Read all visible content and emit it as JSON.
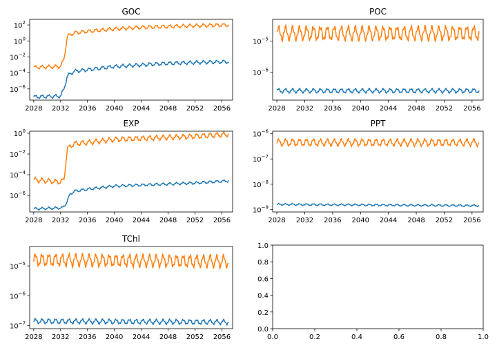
{
  "chart_data": [
    {
      "type": "line",
      "title": "GOC",
      "yscale": "log",
      "xlim": [
        2027.4,
        2057.6
      ],
      "ylim_log10": [
        -7.4,
        2.7
      ],
      "xticks": [
        2028,
        2032,
        2036,
        2040,
        2044,
        2048,
        2052,
        2056
      ],
      "xtick_labels": [
        "2028",
        "2032",
        "2036",
        "2040",
        "2044",
        "2048",
        "2052",
        "2056"
      ],
      "yticks_log10": [
        -6,
        -4,
        -2,
        0,
        2
      ],
      "ytick_labels": [
        "10",
        "10",
        "10",
        "10",
        "10"
      ],
      "ytick_exponents": [
        "−6",
        "−4",
        "−2",
        "0",
        "2"
      ],
      "series": [
        {
          "color": "#1f77b4",
          "x": [
            2028,
            2032,
            2032.5,
            2033,
            2034,
            2036,
            2040,
            2044,
            2048,
            2052,
            2057
          ],
          "log10_y": [
            -7.0,
            -6.9,
            -6.0,
            -4.4,
            -3.8,
            -3.6,
            -3.2,
            -3.0,
            -2.8,
            -2.7,
            -2.6
          ],
          "seasonal_amp": 0.18
        },
        {
          "color": "#ff7f0e",
          "x": [
            2028,
            2032,
            2032.5,
            2033,
            2034,
            2036,
            2040,
            2044,
            2048,
            2052,
            2057
          ],
          "log10_y": [
            -3.3,
            -3.2,
            -2.3,
            0.6,
            1.0,
            1.2,
            1.5,
            1.7,
            1.8,
            1.9,
            2.0
          ],
          "seasonal_amp": 0.18
        }
      ]
    },
    {
      "type": "line",
      "title": "POC",
      "yscale": "log",
      "xlim": [
        2027.4,
        2057.6
      ],
      "ylim_log10": [
        -6.9,
        -4.3
      ],
      "xticks": [
        2028,
        2032,
        2036,
        2040,
        2044,
        2048,
        2052,
        2056
      ],
      "xtick_labels": [
        "2028",
        "2032",
        "2036",
        "2040",
        "2044",
        "2048",
        "2052",
        "2056"
      ],
      "yticks_log10": [
        -6,
        -5
      ],
      "ytick_labels": [
        "10",
        "10"
      ],
      "ytick_exponents": [
        "−6",
        "−5"
      ],
      "series": [
        {
          "color": "#1f77b4",
          "x": [
            2028,
            2057
          ],
          "log10_y": [
            -6.6,
            -6.6
          ],
          "seasonal_amp": 0.06
        },
        {
          "color": "#ff7f0e",
          "x": [
            2028,
            2057
          ],
          "log10_y": [
            -4.75,
            -4.75
          ],
          "seasonal_amp": 0.2
        }
      ]
    },
    {
      "type": "line",
      "title": "EXP",
      "yscale": "log",
      "xlim": [
        2027.4,
        2057.6
      ],
      "ylim_log10": [
        -7.6,
        0.2
      ],
      "xticks": [
        2028,
        2032,
        2036,
        2040,
        2044,
        2048,
        2052,
        2056
      ],
      "xtick_labels": [
        "2028",
        "2032",
        "2036",
        "2040",
        "2044",
        "2048",
        "2052",
        "2056"
      ],
      "yticks_log10": [
        -6,
        -4,
        -2,
        0
      ],
      "ytick_labels": [
        "10",
        "10",
        "10",
        "10"
      ],
      "ytick_exponents": [
        "−6",
        "−4",
        "−2",
        "0"
      ],
      "series": [
        {
          "color": "#1f77b4",
          "x": [
            2028,
            2032.3,
            2032.8,
            2033.4,
            2034,
            2036,
            2040,
            2044,
            2048,
            2052,
            2057
          ],
          "log10_y": [
            -7.3,
            -7.2,
            -6.8,
            -5.9,
            -5.6,
            -5.4,
            -5.1,
            -5.0,
            -4.9,
            -4.8,
            -4.6
          ],
          "seasonal_amp": 0.1
        },
        {
          "color": "#ff7f0e",
          "x": [
            2028,
            2032,
            2032.5,
            2033,
            2034,
            2036,
            2040,
            2044,
            2048,
            2052,
            2057
          ],
          "log10_y": [
            -4.5,
            -4.7,
            -4.5,
            -1.5,
            -1.0,
            -0.9,
            -0.6,
            -0.5,
            -0.4,
            -0.3,
            -0.1
          ],
          "seasonal_amp": 0.2
        }
      ]
    },
    {
      "type": "line",
      "title": "PPT",
      "yscale": "log",
      "xlim": [
        2027.4,
        2057.6
      ],
      "ylim_log10": [
        -9.1,
        -5.9
      ],
      "xticks": [
        2028,
        2032,
        2036,
        2040,
        2044,
        2048,
        2052,
        2056
      ],
      "xtick_labels": [
        "2028",
        "2032",
        "2036",
        "2040",
        "2044",
        "2048",
        "2052",
        "2056"
      ],
      "yticks_log10": [
        -9,
        -8,
        -7,
        -6
      ],
      "ytick_labels": [
        "10",
        "10",
        "10",
        "10"
      ],
      "ytick_exponents": [
        "−9",
        "−8",
        "−7",
        "−6"
      ],
      "series": [
        {
          "color": "#1f77b4",
          "x": [
            2028,
            2057
          ],
          "log10_y": [
            -8.8,
            -8.85
          ],
          "seasonal_amp": 0.03
        },
        {
          "color": "#ff7f0e",
          "x": [
            2028,
            2057
          ],
          "log10_y": [
            -6.35,
            -6.35
          ],
          "seasonal_amp": 0.12
        }
      ]
    },
    {
      "type": "line",
      "title": "TChl",
      "yscale": "log",
      "xlim": [
        2027.4,
        2057.6
      ],
      "ylim_log10": [
        -7.1,
        -4.35
      ],
      "xticks": [
        2028,
        2032,
        2036,
        2040,
        2044,
        2048,
        2052,
        2056
      ],
      "xtick_labels": [
        "2028",
        "2032",
        "2036",
        "2040",
        "2044",
        "2048",
        "2052",
        "2056"
      ],
      "yticks_log10": [
        -7,
        -6,
        -5
      ],
      "ytick_labels": [
        "10",
        "10",
        "10"
      ],
      "ytick_exponents": [
        "−7",
        "−6",
        "−5"
      ],
      "series": [
        {
          "color": "#1f77b4",
          "x": [
            2028,
            2057
          ],
          "log10_y": [
            -6.85,
            -6.88
          ],
          "seasonal_amp": 0.07
        },
        {
          "color": "#ff7f0e",
          "x": [
            2028,
            2057
          ],
          "log10_y": [
            -4.8,
            -4.85
          ],
          "seasonal_amp": 0.18
        }
      ]
    },
    {
      "type": "line",
      "title": "",
      "yscale": "linear",
      "xlim": [
        0,
        1
      ],
      "ylim": [
        0,
        1
      ],
      "xticks": [
        0,
        0.2,
        0.4,
        0.6,
        0.8,
        1.0
      ],
      "xtick_labels": [
        "0.0",
        "0.2",
        "0.4",
        "0.6",
        "0.8",
        "1.0"
      ],
      "yticks": [
        0,
        0.2,
        0.4,
        0.6,
        0.8,
        1.0
      ],
      "ytick_labels": [
        "0.0",
        "0.2",
        "0.4",
        "0.6",
        "0.8",
        "1.0"
      ],
      "series": []
    }
  ]
}
